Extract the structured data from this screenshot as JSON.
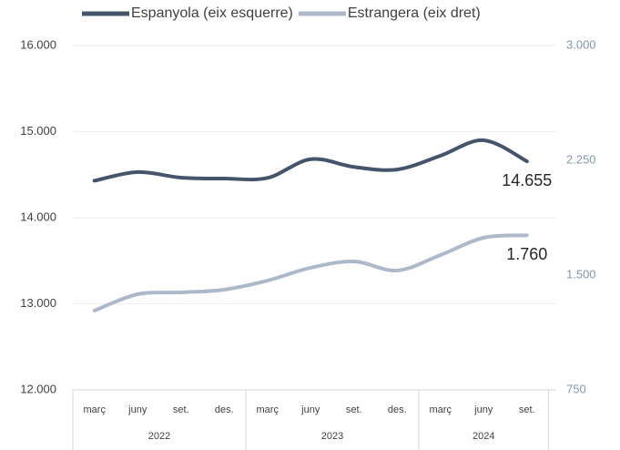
{
  "chart_data": {
    "type": "line",
    "groups": [
      {
        "name": "2022",
        "categories": [
          "març",
          "juny",
          "set.",
          "des."
        ]
      },
      {
        "name": "2023",
        "categories": [
          "març",
          "juny",
          "set.",
          "des."
        ]
      },
      {
        "name": "2024",
        "categories": [
          "març",
          "juny",
          "set."
        ]
      }
    ],
    "series": [
      {
        "name": "Espanyola (eix esquerre)",
        "color": "#44546a",
        "axis": "y",
        "values": [
          14430,
          14530,
          14466,
          14455,
          14462,
          14680,
          14590,
          14560,
          14720,
          14900,
          14655
        ],
        "value_labels": [
          null,
          null,
          null,
          null,
          null,
          null,
          null,
          null,
          null,
          null,
          "14.655"
        ]
      },
      {
        "name": "Estrangera (eix dret)",
        "color": "#adb9ca",
        "axis": "y2",
        "values": [
          1268,
          1375,
          1387,
          1405,
          1464,
          1548,
          1589,
          1530,
          1631,
          1744,
          1760
        ],
        "value_labels": [
          null,
          null,
          null,
          null,
          null,
          null,
          null,
          null,
          null,
          null,
          "1.760"
        ]
      }
    ],
    "ylim": [
      12000,
      16000
    ],
    "yticks": [
      {
        "value": 12000,
        "label": "12.000"
      },
      {
        "value": 13000,
        "label": "13.000"
      },
      {
        "value": 14000,
        "label": "14.000"
      },
      {
        "value": 15000,
        "label": "15.000"
      },
      {
        "value": 16000,
        "label": "16.000"
      }
    ],
    "y2lim": [
      750,
      3000
    ],
    "y2ticks": [
      750,
      {
        "value": 1500,
        "label": "1.500"
      },
      {
        "value": 2250,
        "label": "2.250"
      },
      {
        "value": 3000,
        "label": "3.000"
      }
    ],
    "grid": true,
    "legend": "top"
  }
}
